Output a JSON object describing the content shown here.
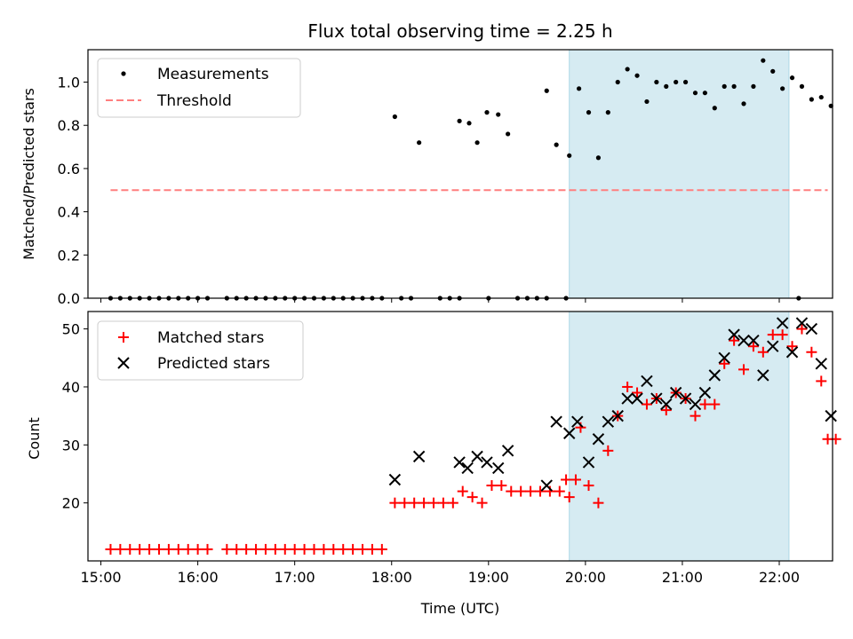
{
  "chart_data": [
    {
      "type": "scatter",
      "title": "Flux total observing time = 2.25 h",
      "xlabel": "",
      "ylabel": "Matched/Predicted stars",
      "ylim": [
        0,
        1.15
      ],
      "yticks": [
        "0.0",
        "0.2",
        "0.4",
        "0.6",
        "0.8",
        "1.0"
      ],
      "ytick_values": [
        0,
        0.2,
        0.4,
        0.6,
        0.8,
        1.0
      ],
      "xlim": [
        "14:52",
        "22:33"
      ],
      "shaded_region": {
        "from": "19:50",
        "to": "22:06",
        "color": "#add8e6"
      },
      "legend": {
        "location": "upper-left",
        "entries": [
          "Measurements",
          "Threshold"
        ]
      },
      "series": [
        {
          "name": "Measurements",
          "marker": "dot",
          "color": "#000000",
          "points": [
            [
              "15:06",
              0
            ],
            [
              "15:12",
              0
            ],
            [
              "15:18",
              0
            ],
            [
              "15:24",
              0
            ],
            [
              "15:30",
              0
            ],
            [
              "15:36",
              0
            ],
            [
              "15:42",
              0
            ],
            [
              "15:48",
              0
            ],
            [
              "15:54",
              0
            ],
            [
              "16:00",
              0
            ],
            [
              "16:06",
              0
            ],
            [
              "16:18",
              0
            ],
            [
              "16:24",
              0
            ],
            [
              "16:30",
              0
            ],
            [
              "16:36",
              0
            ],
            [
              "16:42",
              0
            ],
            [
              "16:48",
              0
            ],
            [
              "16:54",
              0
            ],
            [
              "17:00",
              0
            ],
            [
              "17:06",
              0
            ],
            [
              "17:12",
              0
            ],
            [
              "17:18",
              0
            ],
            [
              "17:24",
              0
            ],
            [
              "17:30",
              0
            ],
            [
              "17:36",
              0
            ],
            [
              "17:42",
              0
            ],
            [
              "17:48",
              0
            ],
            [
              "17:54",
              0
            ],
            [
              "18:06",
              0
            ],
            [
              "18:12",
              0
            ],
            [
              "18:30",
              0
            ],
            [
              "18:36",
              0
            ],
            [
              "18:42",
              0
            ],
            [
              "19:00",
              0
            ],
            [
              "19:18",
              0
            ],
            [
              "19:24",
              0
            ],
            [
              "19:30",
              0
            ],
            [
              "19:36",
              0
            ],
            [
              "19:48",
              0
            ],
            [
              "22:12",
              0
            ],
            [
              "18:02",
              0.84
            ],
            [
              "18:17",
              0.72
            ],
            [
              "18:42",
              0.82
            ],
            [
              "18:48",
              0.81
            ],
            [
              "18:53",
              0.72
            ],
            [
              "18:59",
              0.86
            ],
            [
              "19:06",
              0.85
            ],
            [
              "19:12",
              0.76
            ],
            [
              "19:36",
              0.96
            ],
            [
              "19:42",
              0.71
            ],
            [
              "19:50",
              0.66
            ],
            [
              "19:56",
              0.97
            ],
            [
              "20:02",
              0.86
            ],
            [
              "20:08",
              0.65
            ],
            [
              "20:14",
              0.86
            ],
            [
              "20:20",
              1.0
            ],
            [
              "20:26",
              1.06
            ],
            [
              "20:32",
              1.03
            ],
            [
              "20:38",
              0.91
            ],
            [
              "20:44",
              1.0
            ],
            [
              "20:50",
              0.98
            ],
            [
              "20:56",
              1.0
            ],
            [
              "21:02",
              1.0
            ],
            [
              "21:08",
              0.95
            ],
            [
              "21:14",
              0.95
            ],
            [
              "21:20",
              0.88
            ],
            [
              "21:26",
              0.98
            ],
            [
              "21:32",
              0.98
            ],
            [
              "21:38",
              0.9
            ],
            [
              "21:44",
              0.98
            ],
            [
              "21:50",
              1.1
            ],
            [
              "21:56",
              1.05
            ],
            [
              "22:02",
              0.97
            ],
            [
              "22:08",
              1.02
            ],
            [
              "22:14",
              0.98
            ],
            [
              "22:20",
              0.92
            ],
            [
              "22:26",
              0.93
            ],
            [
              "22:32",
              0.89
            ]
          ]
        },
        {
          "name": "Threshold",
          "marker": "dashed-line",
          "color": "#ff7f7f",
          "points": [
            [
              "15:06",
              0.5
            ],
            [
              "22:30",
              0.5
            ]
          ]
        }
      ]
    },
    {
      "type": "scatter",
      "title": "",
      "xlabel": "Time (UTC)",
      "ylabel": "Count",
      "ylim": [
        10,
        53
      ],
      "yticks": [
        "20",
        "30",
        "40",
        "50"
      ],
      "ytick_values": [
        20,
        30,
        40,
        50
      ],
      "xlim": [
        "14:52",
        "22:33"
      ],
      "xticks": [
        "15:00",
        "16:00",
        "17:00",
        "18:00",
        "19:00",
        "20:00",
        "21:00",
        "22:00"
      ],
      "shaded_region": {
        "from": "19:50",
        "to": "22:06",
        "color": "#add8e6"
      },
      "legend": {
        "location": "upper-left",
        "entries": [
          "Matched stars",
          "Predicted stars"
        ]
      },
      "series": [
        {
          "name": "Matched stars",
          "marker": "plus",
          "color": "#ff0000",
          "points": [
            [
              "15:06",
              12
            ],
            [
              "15:12",
              12
            ],
            [
              "15:18",
              12
            ],
            [
              "15:24",
              12
            ],
            [
              "15:30",
              12
            ],
            [
              "15:36",
              12
            ],
            [
              "15:42",
              12
            ],
            [
              "15:48",
              12
            ],
            [
              "15:54",
              12
            ],
            [
              "16:00",
              12
            ],
            [
              "16:06",
              12
            ],
            [
              "16:18",
              12
            ],
            [
              "16:24",
              12
            ],
            [
              "16:30",
              12
            ],
            [
              "16:36",
              12
            ],
            [
              "16:42",
              12
            ],
            [
              "16:48",
              12
            ],
            [
              "16:54",
              12
            ],
            [
              "17:00",
              12
            ],
            [
              "17:06",
              12
            ],
            [
              "17:12",
              12
            ],
            [
              "17:18",
              12
            ],
            [
              "17:24",
              12
            ],
            [
              "17:30",
              12
            ],
            [
              "17:36",
              12
            ],
            [
              "17:42",
              12
            ],
            [
              "17:48",
              12
            ],
            [
              "17:54",
              12
            ],
            [
              "18:02",
              20
            ],
            [
              "18:08",
              20
            ],
            [
              "18:14",
              20
            ],
            [
              "18:20",
              20
            ],
            [
              "18:26",
              20
            ],
            [
              "18:32",
              20
            ],
            [
              "18:38",
              20
            ],
            [
              "18:44",
              22
            ],
            [
              "18:50",
              21
            ],
            [
              "18:56",
              20
            ],
            [
              "19:02",
              23
            ],
            [
              "19:08",
              23
            ],
            [
              "19:14",
              22
            ],
            [
              "19:20",
              22
            ],
            [
              "19:26",
              22
            ],
            [
              "19:32",
              22
            ],
            [
              "19:38",
              22
            ],
            [
              "19:44",
              22
            ],
            [
              "19:48",
              24
            ],
            [
              "19:54",
              24
            ],
            [
              "19:50",
              21
            ],
            [
              "19:57",
              33
            ],
            [
              "20:02",
              23
            ],
            [
              "20:08",
              20
            ],
            [
              "20:14",
              29
            ],
            [
              "20:20",
              35
            ],
            [
              "20:26",
              40
            ],
            [
              "20:32",
              39
            ],
            [
              "20:38",
              37
            ],
            [
              "20:44",
              38
            ],
            [
              "20:50",
              36
            ],
            [
              "20:56",
              39
            ],
            [
              "21:02",
              38
            ],
            [
              "21:08",
              35
            ],
            [
              "21:14",
              37
            ],
            [
              "21:20",
              37
            ],
            [
              "21:26",
              44
            ],
            [
              "21:32",
              48
            ],
            [
              "21:38",
              43
            ],
            [
              "21:44",
              47
            ],
            [
              "21:50",
              46
            ],
            [
              "21:56",
              49
            ],
            [
              "22:02",
              49
            ],
            [
              "22:08",
              47
            ],
            [
              "22:14",
              50
            ],
            [
              "22:20",
              46
            ],
            [
              "22:26",
              41
            ],
            [
              "22:30",
              31
            ],
            [
              "22:35",
              31
            ]
          ]
        },
        {
          "name": "Predicted stars",
          "marker": "x",
          "color": "#000000",
          "points": [
            [
              "18:02",
              24
            ],
            [
              "18:17",
              28
            ],
            [
              "18:42",
              27
            ],
            [
              "18:47",
              26
            ],
            [
              "18:53",
              28
            ],
            [
              "18:59",
              27
            ],
            [
              "19:06",
              26
            ],
            [
              "19:12",
              29
            ],
            [
              "19:36",
              23
            ],
            [
              "19:42",
              34
            ],
            [
              "19:50",
              32
            ],
            [
              "19:55",
              34
            ],
            [
              "20:02",
              27
            ],
            [
              "20:08",
              31
            ],
            [
              "20:14",
              34
            ],
            [
              "20:20",
              35
            ],
            [
              "20:26",
              38
            ],
            [
              "20:32",
              38
            ],
            [
              "20:38",
              41
            ],
            [
              "20:44",
              38
            ],
            [
              "20:50",
              37
            ],
            [
              "20:56",
              39
            ],
            [
              "21:02",
              38
            ],
            [
              "21:08",
              37
            ],
            [
              "21:14",
              39
            ],
            [
              "21:20",
              42
            ],
            [
              "21:26",
              45
            ],
            [
              "21:32",
              49
            ],
            [
              "21:38",
              48
            ],
            [
              "21:44",
              48
            ],
            [
              "21:50",
              42
            ],
            [
              "21:56",
              47
            ],
            [
              "22:02",
              51
            ],
            [
              "22:08",
              46
            ],
            [
              "22:14",
              51
            ],
            [
              "22:20",
              50
            ],
            [
              "22:26",
              44
            ],
            [
              "22:32",
              35
            ]
          ]
        }
      ]
    }
  ]
}
